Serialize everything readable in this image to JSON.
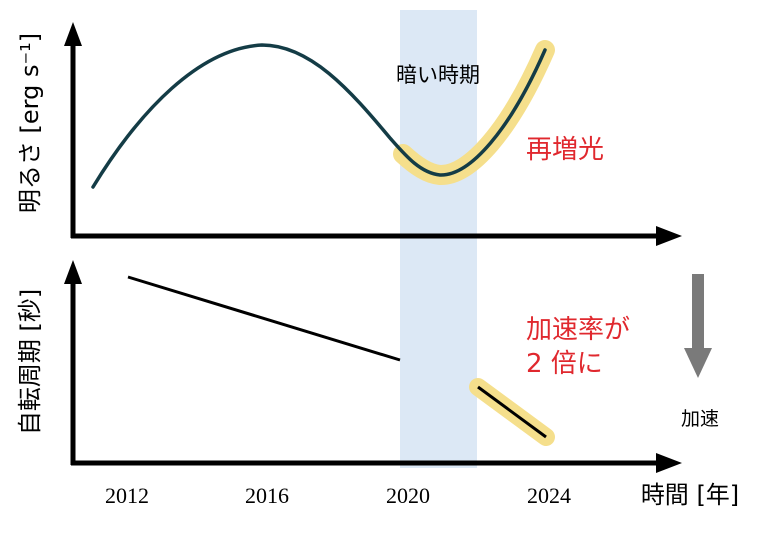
{
  "top_panel": {
    "ylabel": "明るさ [erg s⁻¹]",
    "dark_period_label": "暗い時期",
    "rebrightening_label": "再増光"
  },
  "bottom_panel": {
    "ylabel": "自転周期 [秒]",
    "acceleration_note_line1": "加速率が",
    "acceleration_note_line2": "2 倍に",
    "arrow_label": "加速"
  },
  "x_axis": {
    "label": "時間 [年]",
    "ticks": [
      "2012",
      "2016",
      "2020",
      "2024"
    ]
  },
  "colors": {
    "curve": "#143c46",
    "highlight": "#f5df8c",
    "dark_band": "#dce8f5",
    "red_text": "#e0282e",
    "axis": "#000000",
    "accel_arrow": "#7a7a7a"
  }
}
